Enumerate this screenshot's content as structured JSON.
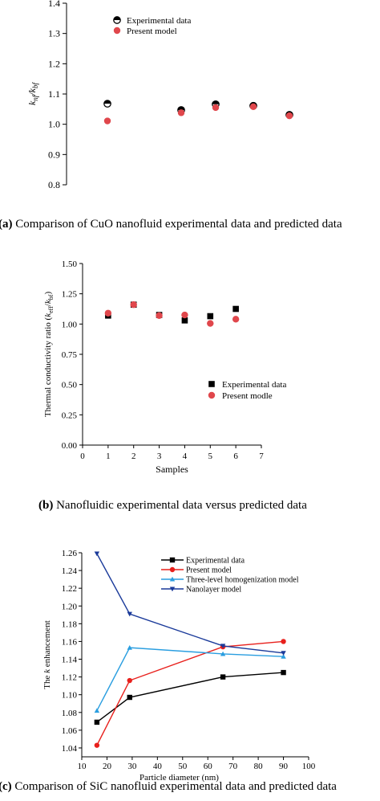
{
  "chart_data": [
    {
      "type": "scatter",
      "ylabel": "k_nf/k_bf",
      "ylim": [
        0.8,
        1.4
      ],
      "yticks": [
        "0.8",
        "0.9",
        "1.0",
        "1.1",
        "1.2",
        "1.3",
        "1.4"
      ],
      "x": [
        1,
        2,
        3,
        4,
        5
      ],
      "series": [
        {
          "name": "Experimental data",
          "marker": "half-filled-circle",
          "color": "#000000",
          "values": [
            1.068,
            1.047,
            1.066,
            1.061,
            1.031
          ]
        },
        {
          "name": "Present model",
          "marker": "circle",
          "color": "#e0474c",
          "values": [
            1.011,
            1.038,
            1.055,
            1.058,
            1.028
          ]
        }
      ],
      "legend": "top-left",
      "caption_label": "(a)",
      "caption_text": "Comparison of CuO nanofluid experimental data and predicted data"
    },
    {
      "type": "scatter",
      "xlabel": "Samples",
      "ylabel": "Thermal conductivity ratio (k_eff/k_bf)",
      "xlim": [
        0,
        7
      ],
      "ylim": [
        0,
        1.5
      ],
      "xticks": [
        "0",
        "1",
        "2",
        "3",
        "4",
        "5",
        "6",
        "7"
      ],
      "yticks": [
        "0.00",
        "0.25",
        "0.50",
        "0.75",
        "1.00",
        "1.25",
        "1.50"
      ],
      "x": [
        1,
        2,
        3,
        4,
        5,
        6
      ],
      "series": [
        {
          "name": "Experimental data",
          "marker": "square",
          "color": "#000000",
          "values": [
            1.07,
            1.16,
            1.075,
            1.03,
            1.065,
            1.125
          ]
        },
        {
          "name": "Present modle",
          "marker": "circle",
          "color": "#e0474c",
          "values": [
            1.09,
            1.16,
            1.07,
            1.075,
            1.005,
            1.04
          ]
        }
      ],
      "legend": "bottom-right",
      "caption_label": "(b)",
      "caption_text": "Nanofluidic experimental data versus predicted data"
    },
    {
      "type": "line",
      "xlabel": "Particle diameter (nm)",
      "ylabel": "The k enhancement",
      "xlim": [
        10,
        100
      ],
      "ylim": [
        1.03,
        1.26
      ],
      "xticks": [
        "10",
        "20",
        "30",
        "40",
        "50",
        "60",
        "70",
        "80",
        "90",
        "100"
      ],
      "yticks": [
        "1.04",
        "1.06",
        "1.08",
        "1.10",
        "1.12",
        "1.14",
        "1.16",
        "1.18",
        "1.20",
        "1.22",
        "1.24",
        "1.26"
      ],
      "x": [
        16,
        29,
        66,
        90
      ],
      "series": [
        {
          "name": "Experimental data",
          "marker": "square",
          "color": "#000000",
          "values": [
            1.069,
            1.097,
            1.12,
            1.125
          ]
        },
        {
          "name": "Present model",
          "marker": "circle",
          "color": "#e8201c",
          "values": [
            1.043,
            1.116,
            1.154,
            1.16
          ]
        },
        {
          "name": "Three-level homogenization model",
          "marker": "triangle-up",
          "color": "#2a9ee0",
          "values": [
            1.082,
            1.153,
            1.146,
            1.143
          ]
        },
        {
          "name": "Nanolayer model",
          "marker": "triangle-down",
          "color": "#1a3a9a",
          "values": [
            1.259,
            1.191,
            1.155,
            1.147
          ]
        }
      ],
      "legend": "top-right",
      "caption_label": "(c)",
      "caption_text": "Comparison of SiC nanofluid experimental data and predicted data"
    }
  ]
}
